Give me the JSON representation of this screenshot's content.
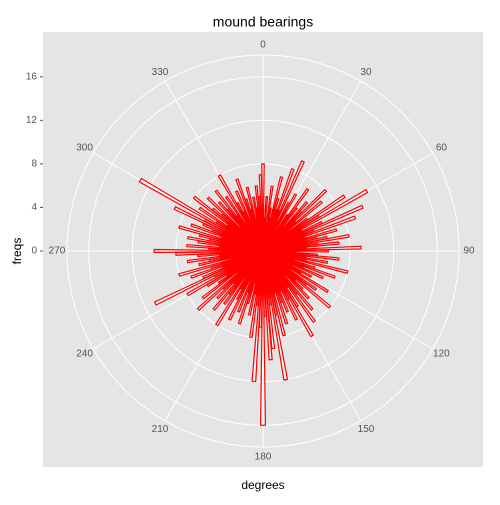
{
  "chart_data": {
    "type": "polar_bar",
    "title": "mound bearings",
    "x_label": "degrees",
    "y_label": "freqs",
    "color": "#ff0000",
    "x": [
      0,
      2,
      4,
      6,
      8,
      10,
      12,
      14,
      16,
      18,
      20,
      22,
      24,
      26,
      28,
      30,
      32,
      34,
      36,
      38,
      40,
      42,
      44,
      46,
      48,
      50,
      52,
      54,
      56,
      58,
      60,
      62,
      64,
      66,
      68,
      70,
      72,
      74,
      76,
      78,
      80,
      82,
      84,
      86,
      88,
      90,
      92,
      94,
      96,
      98,
      100,
      102,
      104,
      106,
      108,
      110,
      112,
      114,
      116,
      118,
      120,
      122,
      124,
      126,
      128,
      130,
      132,
      134,
      136,
      138,
      140,
      142,
      144,
      146,
      148,
      150,
      152,
      154,
      156,
      158,
      160,
      162,
      164,
      166,
      168,
      170,
      172,
      174,
      176,
      178,
      180,
      182,
      184,
      186,
      188,
      190,
      192,
      194,
      196,
      198,
      200,
      202,
      204,
      206,
      208,
      210,
      212,
      214,
      216,
      218,
      220,
      222,
      224,
      226,
      228,
      230,
      232,
      234,
      236,
      238,
      240,
      242,
      244,
      246,
      248,
      250,
      252,
      254,
      256,
      258,
      260,
      262,
      264,
      266,
      268,
      270,
      272,
      274,
      276,
      278,
      280,
      282,
      284,
      286,
      288,
      290,
      292,
      294,
      296,
      298,
      300,
      302,
      304,
      306,
      308,
      310,
      312,
      314,
      316,
      318,
      320,
      322,
      324,
      326,
      328,
      330,
      332,
      334,
      336,
      338,
      340,
      342,
      344,
      346,
      348,
      350,
      352,
      354,
      356,
      358
    ],
    "values": [
      8,
      3,
      5,
      2,
      6,
      4,
      3,
      7,
      5,
      4,
      8,
      4,
      9,
      3,
      5,
      6,
      2,
      4,
      7,
      5,
      3,
      6,
      5,
      8,
      4,
      7,
      3,
      5,
      9,
      6,
      11,
      4,
      6,
      10,
      5,
      9,
      4,
      7,
      5,
      6,
      8,
      5,
      7,
      4,
      9,
      6,
      3,
      5,
      7,
      4,
      6,
      4,
      8,
      3,
      5,
      7,
      4,
      6,
      3,
      5,
      4,
      7,
      3,
      6,
      5,
      8,
      4,
      5,
      6,
      3,
      7,
      5,
      8,
      4,
      6,
      9,
      5,
      7,
      4,
      6,
      5,
      7,
      4,
      8,
      6,
      12,
      5,
      9,
      10,
      6,
      16,
      7,
      12,
      5,
      8,
      4,
      6,
      3,
      5,
      7,
      4,
      6,
      3,
      7,
      5,
      4,
      8,
      3,
      6,
      5,
      7,
      4,
      6,
      5,
      8,
      3,
      7,
      5,
      4,
      6,
      8,
      5,
      11,
      6,
      4,
      7,
      5,
      8,
      3,
      6,
      5,
      7,
      4,
      6,
      8,
      10,
      5,
      7,
      4,
      6,
      7,
      5,
      6,
      8,
      4,
      7,
      5,
      6,
      9,
      6,
      13,
      5,
      7,
      4,
      8,
      6,
      5,
      7,
      3,
      6,
      5,
      7,
      4,
      6,
      3,
      8,
      5,
      4,
      6,
      3,
      7,
      5,
      4,
      6,
      3,
      5,
      4,
      6,
      5,
      7
    ],
    "xlim": [
      0,
      360
    ],
    "xticks": [
      0,
      30,
      60,
      90,
      120,
      150,
      180,
      210,
      240,
      270,
      300,
      330
    ],
    "ylim": [
      0,
      18
    ],
    "yticks": [
      0,
      4,
      8,
      12,
      16
    ],
    "grid": true
  }
}
